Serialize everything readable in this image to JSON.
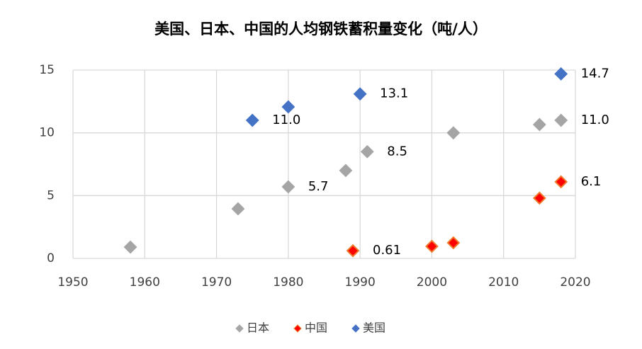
{
  "chart_data": {
    "type": "scatter",
    "title": "美国、日本、中国的人均钢铁蓄积量变化（吨/人）",
    "xlim": [
      1950,
      2020
    ],
    "xticks": [
      1950,
      1960,
      1970,
      1980,
      1990,
      2000,
      2010,
      2020
    ],
    "ylim": [
      0,
      15
    ],
    "yticks": [
      0,
      5,
      10,
      15
    ],
    "grid": true,
    "legend": "bottom",
    "series": [
      {
        "name": "日本",
        "color": "#a5a5a5",
        "edgecolor": "#a5a5a5",
        "x": [
          1958,
          1973,
          1980,
          1988,
          1991,
          2003,
          2015,
          2018
        ],
        "values": [
          0.9,
          3.95,
          5.7,
          7.0,
          8.5,
          10.0,
          10.66,
          11
        ],
        "value_labels": [
          null,
          null,
          "5.7",
          null,
          "8.5",
          null,
          null,
          "11.0"
        ]
      },
      {
        "name": "中国",
        "color": "#ff0000",
        "edgecolor": "#ed7d31",
        "x": [
          1989,
          2000,
          2003,
          2015,
          2018
        ],
        "values": [
          0.61,
          0.96,
          1.24,
          4.8,
          6.1
        ],
        "value_labels": [
          "0.61",
          null,
          null,
          null,
          "6.1"
        ]
      },
      {
        "name": "美国",
        "color": "#4472c4",
        "edgecolor": "#4472c4",
        "x": [
          1975,
          1980,
          1990,
          2018
        ],
        "values": [
          11,
          12.07,
          13.1,
          14.7
        ],
        "value_labels": [
          "11.0",
          null,
          "13.1",
          "14.7"
        ]
      }
    ]
  }
}
